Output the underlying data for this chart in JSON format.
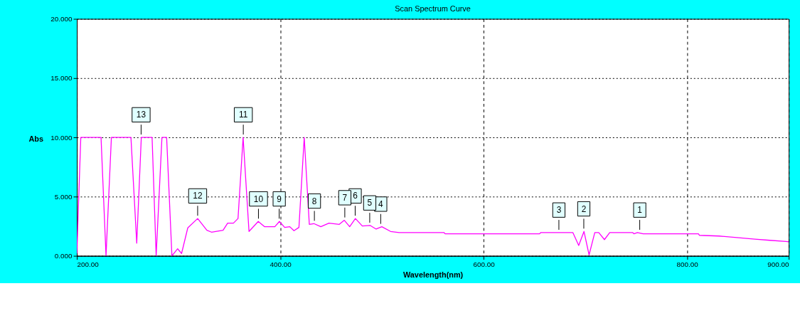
{
  "chart_data": {
    "type": "line",
    "title": "Scan Spectrum Curve",
    "xlabel": "Wavelength(nm)",
    "ylabel": "Abs",
    "x": [
      200,
      203.9,
      223.8,
      228.7,
      234,
      253.2,
      258.9,
      263.4,
      274,
      278,
      283.7,
      288.3,
      293.5,
      299.1,
      303,
      309.1,
      318.8,
      327.9,
      332.4,
      343.8,
      348.3,
      354,
      358.5,
      363.5,
      369.3,
      378.4,
      384.5,
      394.7,
      399.2,
      404.4,
      409.4,
      413.5,
      418.4,
      423.6,
      428.6,
      433.1,
      439.9,
      447.9,
      458.1,
      463,
      468.3,
      473.9,
      480.7,
      488.6,
      494.3,
      499.9,
      508.5,
      516.9,
      561.1,
      562.2,
      655,
      656.1,
      687.8,
      693.5,
      698.7,
      703.7,
      709.3,
      713.2,
      718.8,
      724,
      746.7,
      747.8,
      751.2,
      756.9,
      811.2,
      812.3,
      831.6,
      850.9,
      866.7,
      881.4,
      897.3,
      900
    ],
    "series": [
      {
        "color": "#ff00ff",
        "values": [
          0.2,
          10,
          10,
          0,
          10,
          10,
          1.07,
          10,
          10,
          0,
          10,
          10,
          0,
          0.6,
          0.2,
          2.36,
          3.15,
          2.16,
          2.0,
          2.16,
          2.76,
          2.76,
          3.15,
          10,
          2.06,
          2.9,
          2.46,
          2.46,
          2.9,
          2.4,
          2.46,
          2.12,
          2.4,
          10,
          2.66,
          2.72,
          2.46,
          2.76,
          2.66,
          3.0,
          2.46,
          3.15,
          2.52,
          2.56,
          2.26,
          2.46,
          2.06,
          1.96,
          1.96,
          1.86,
          1.86,
          1.96,
          1.96,
          0.87,
          2.06,
          0.08,
          1.96,
          1.96,
          1.37,
          1.96,
          1.96,
          1.86,
          1.96,
          1.86,
          1.86,
          1.73,
          1.67,
          1.53,
          1.41,
          1.31,
          1.21,
          1.18
        ]
      }
    ],
    "xlim": [
      200,
      900
    ],
    "ylim": [
      0,
      20
    ],
    "xticks": [
      {
        "value": 200,
        "label": "200.00"
      },
      {
        "value": 400,
        "label": "400.00"
      },
      {
        "value": 600,
        "label": "600.00"
      },
      {
        "value": 800,
        "label": "800.00"
      },
      {
        "value": 900,
        "label": "900.00"
      }
    ],
    "yticks": [
      {
        "value": 0,
        "label": "0.000"
      },
      {
        "value": 5,
        "label": "5.000"
      },
      {
        "value": 10,
        "label": "10.000"
      },
      {
        "value": 15,
        "label": "15.000"
      },
      {
        "value": 20,
        "label": "20.000"
      }
    ],
    "grid": true,
    "line_style": "solid",
    "marker": "none",
    "annotations": [
      {
        "text": "1",
        "x": 753.5,
        "y": 1.96
      },
      {
        "text": "2",
        "x": 698.5,
        "y": 2.06
      },
      {
        "text": "3",
        "x": 674,
        "y": 1.96
      },
      {
        "text": "4",
        "x": 498.8,
        "y": 2.46
      },
      {
        "text": "5",
        "x": 488,
        "y": 2.56
      },
      {
        "text": "6",
        "x": 473.7,
        "y": 3.15
      },
      {
        "text": "7",
        "x": 463.5,
        "y": 3.0
      },
      {
        "text": "8",
        "x": 433.6,
        "y": 2.72
      },
      {
        "text": "9",
        "x": 399,
        "y": 2.9
      },
      {
        "text": "10",
        "x": 378.6,
        "y": 2.9
      },
      {
        "text": "11",
        "x": 363.7,
        "y": 10
      },
      {
        "text": "12",
        "x": 318.8,
        "y": 3.15
      },
      {
        "text": "13",
        "x": 263.2,
        "y": 10
      }
    ]
  }
}
